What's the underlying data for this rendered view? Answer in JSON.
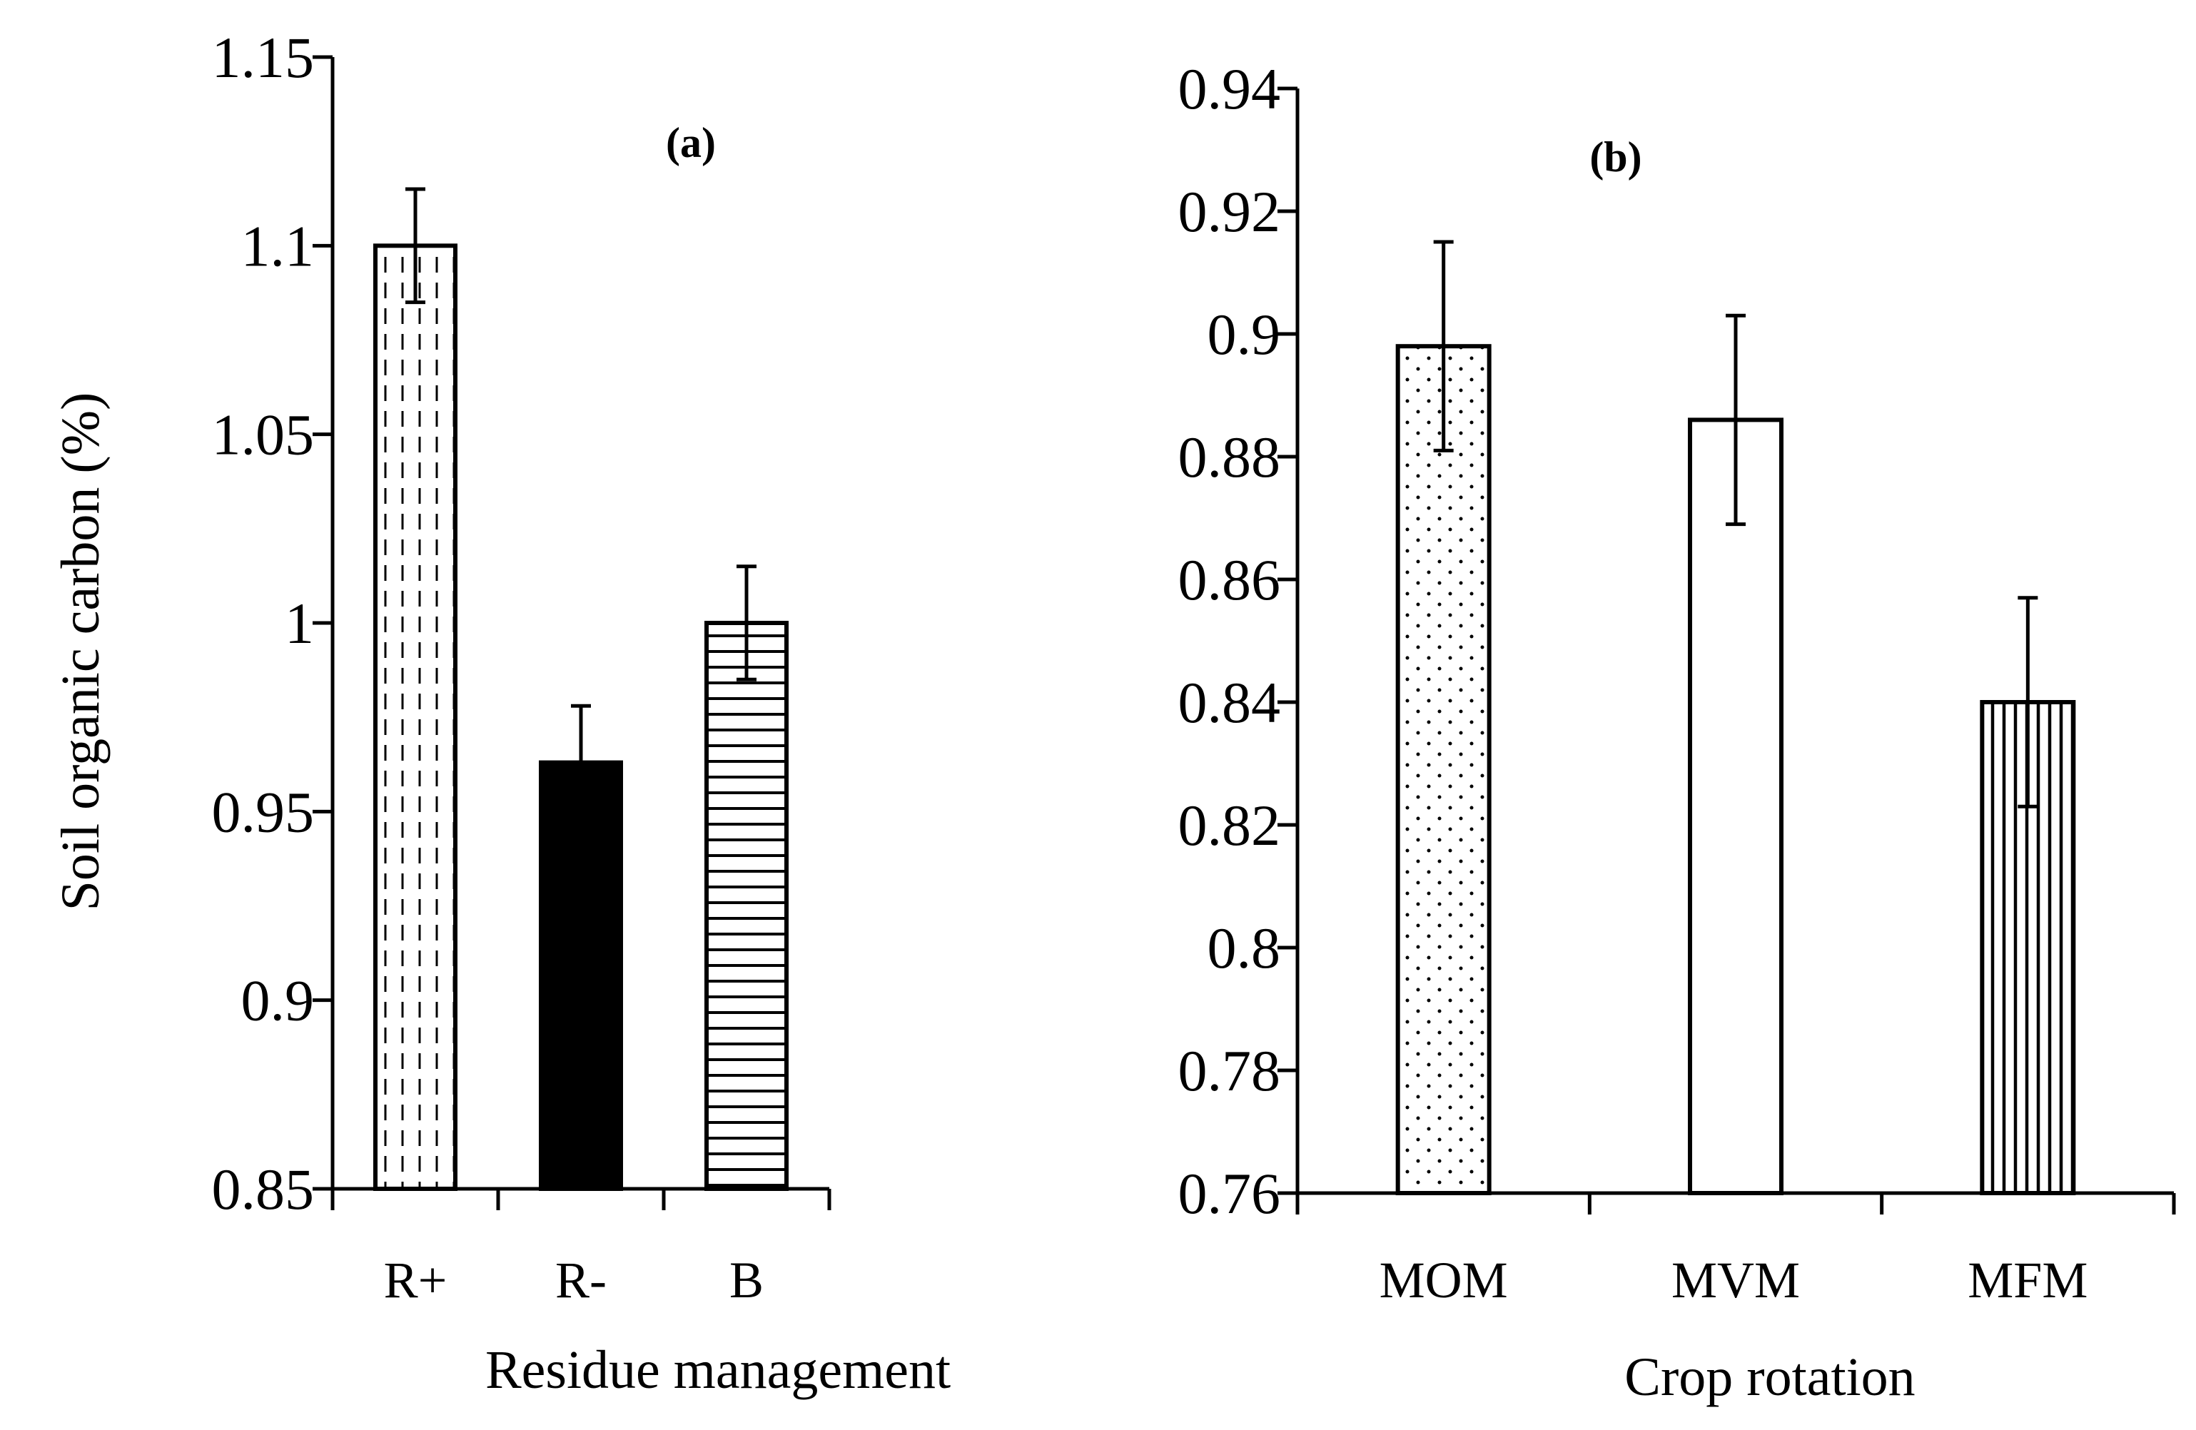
{
  "chart_data": [
    {
      "type": "bar",
      "panel_label": "(a)",
      "title": "",
      "xlabel": "Residue management",
      "ylabel": "Soil organic carbon (%)",
      "ylim": [
        0.85,
        1.15
      ],
      "yticks": [
        "0.85",
        "0.9",
        "0.95",
        "1",
        "1.05",
        "1.1",
        "1.15"
      ],
      "categories": [
        "R+",
        "R-",
        "B"
      ],
      "values": [
        1.1,
        0.963,
        1.0
      ],
      "errors": [
        0.015,
        0.015,
        0.015
      ],
      "patterns": [
        "dashed-vertical",
        "solid-black",
        "horizontal-lines"
      ]
    },
    {
      "type": "bar",
      "panel_label": "(b)",
      "title": "",
      "xlabel": "Crop rotation",
      "ylabel": "",
      "ylim": [
        0.76,
        0.94
      ],
      "yticks": [
        "0.76",
        "0.78",
        "0.8",
        "0.82",
        "0.84",
        "0.86",
        "0.88",
        "0.9",
        "0.92",
        "0.94"
      ],
      "categories": [
        "MOM",
        "MVM",
        "MFM"
      ],
      "values": [
        0.898,
        0.886,
        0.84
      ],
      "errors": [
        0.017,
        0.017,
        0.017
      ],
      "patterns": [
        "dotted",
        "white",
        "vertical-lines"
      ]
    }
  ]
}
